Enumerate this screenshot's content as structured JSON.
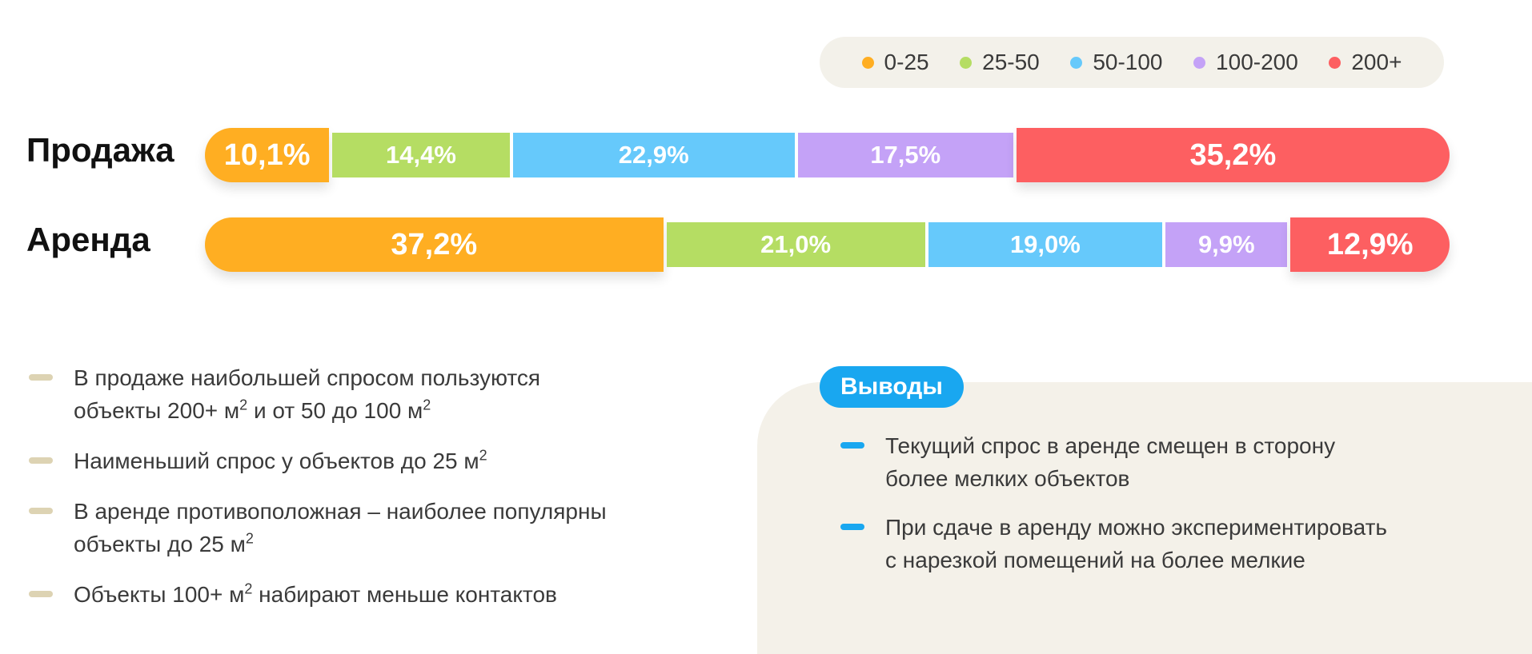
{
  "chart_data": {
    "type": "bar",
    "stacked": true,
    "orientation": "horizontal",
    "unit": "%",
    "categories": [
      "Продажа",
      "Аренда"
    ],
    "series": [
      {
        "name": "0-25",
        "color": "#ffae22",
        "values": [
          10.1,
          37.2
        ],
        "labels": [
          "10,1%",
          "37,2%"
        ]
      },
      {
        "name": "25-50",
        "color": "#b5dd63",
        "values": [
          14.4,
          21.0
        ],
        "labels": [
          "14,4%",
          "21,0%"
        ]
      },
      {
        "name": "50-100",
        "color": "#66c9fb",
        "values": [
          22.9,
          19.0
        ],
        "labels": [
          "22,9%",
          "19,0%"
        ]
      },
      {
        "name": "100-200",
        "color": "#c4a2f7",
        "values": [
          17.5,
          9.9
        ],
        "labels": [
          "17,5%",
          "9,9%"
        ]
      },
      {
        "name": "200+",
        "color": "#fd5f61",
        "values": [
          35.2,
          12.9
        ],
        "labels": [
          "35,2%",
          "12,9%"
        ]
      }
    ],
    "legend_position": "top-right",
    "emphasized_series": {
      "Продажа": [
        "0-25",
        "200+"
      ],
      "Аренда": [
        "0-25",
        "200+"
      ]
    }
  },
  "notes": [
    {
      "parts": [
        "В продаже наибольшей спросом пользуются",
        "объекты 200+ м",
        "2",
        " и от 50 до 100 м",
        "2"
      ]
    },
    {
      "parts": [
        "Наименьший спрос у объектов до 25 м",
        "2"
      ]
    },
    {
      "parts": [
        "В аренде противоположная – наиболее популярны",
        "объекты до 25 м",
        "2"
      ]
    },
    {
      "parts": [
        "Объекты 100+ м",
        "2",
        " набирают меньше контактов"
      ]
    }
  ],
  "conclusions": {
    "title": "Выводы",
    "items": [
      {
        "line1": "Текущий спрос в аренде смещен в сторону",
        "line2": "более мелких объектов"
      },
      {
        "line1": "При сдаче в аренду можно экспериментировать",
        "line2": "с нарезкой помещений на более мелкие"
      }
    ]
  },
  "colors": {
    "accent": "#19a7f0",
    "panel": "#f4f1e9",
    "legend_bg": "#f3f1ea",
    "note_dash": "#ddd3b3"
  }
}
